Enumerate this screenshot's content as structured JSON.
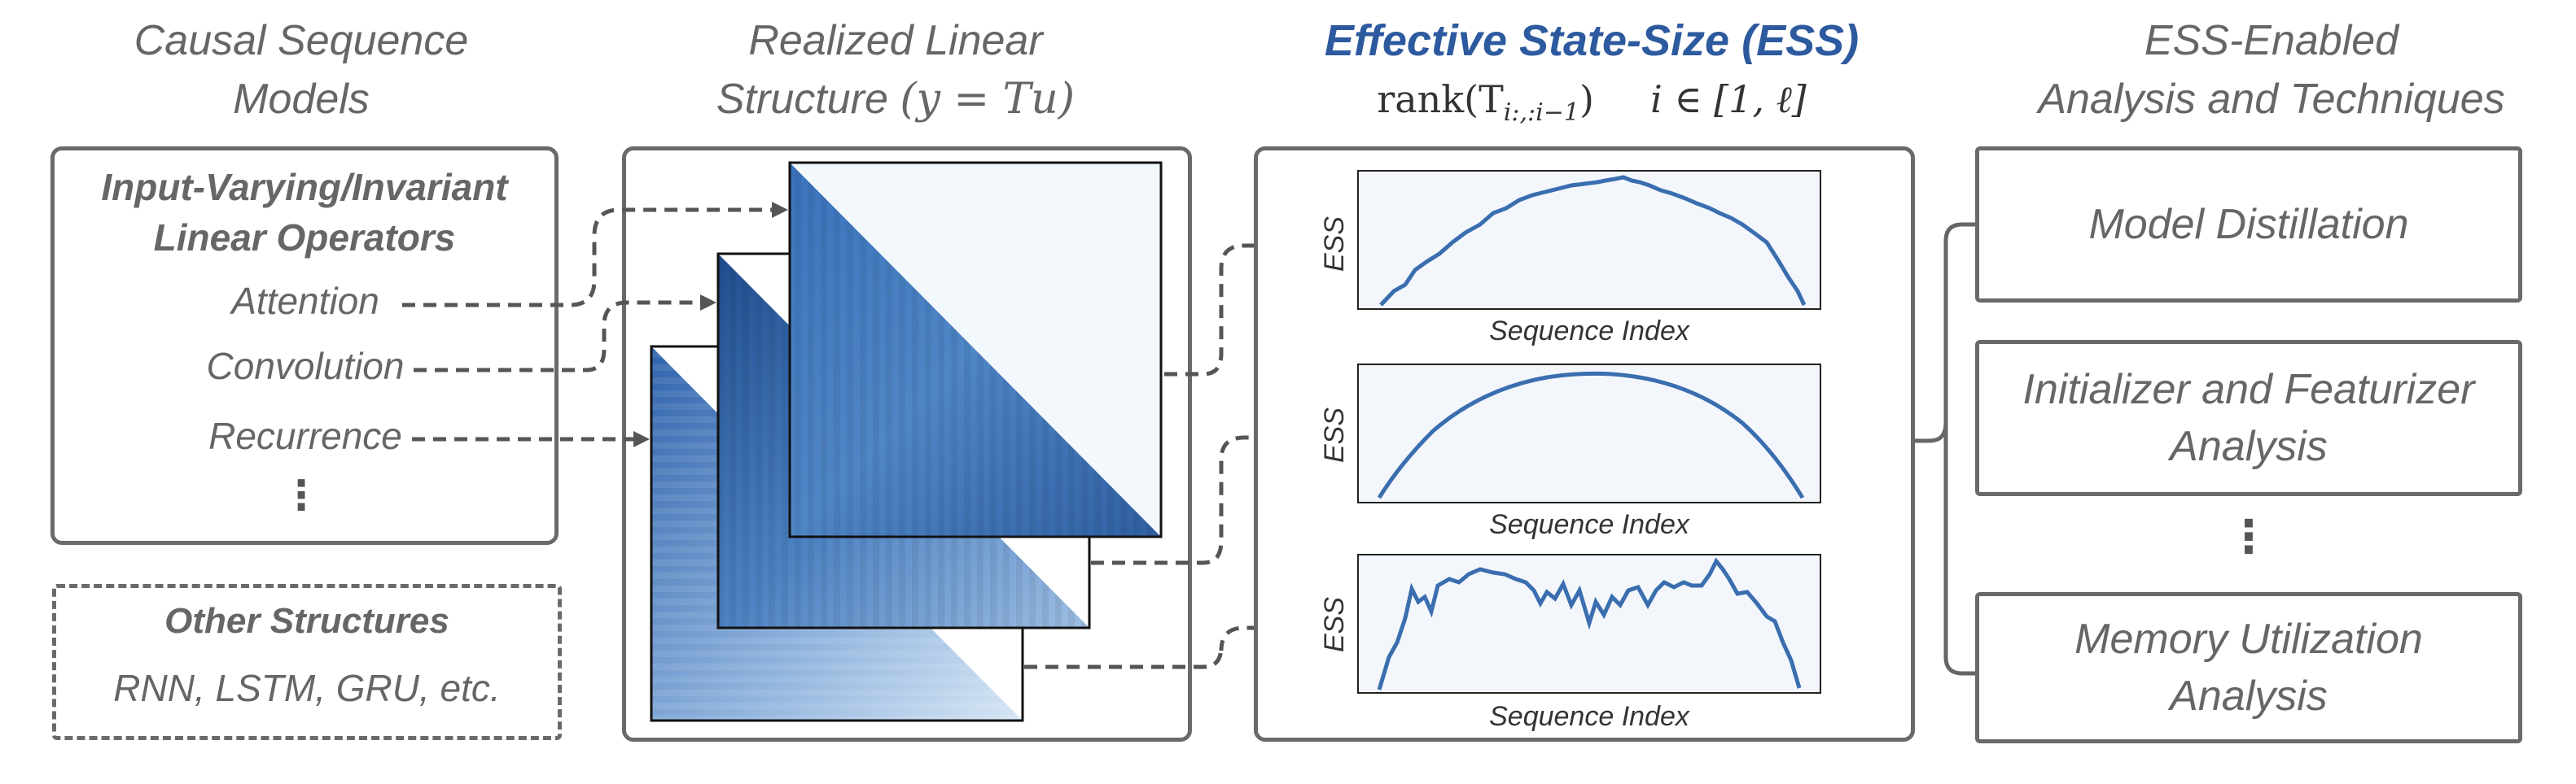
{
  "columns": {
    "causal": {
      "line1": "Causal Sequence",
      "line2": "Models"
    },
    "realized": {
      "line1": "Realized Linear",
      "line2_text": "Structure",
      "formula": "(y = Tu)"
    },
    "ess": {
      "title": "Effective State-Size (ESS)",
      "formula_rank": "rank(T",
      "formula_sub": "i:,:i−1",
      "formula_close": ")",
      "formula_range": "i ∈ [1, ℓ]"
    },
    "enabled": {
      "line1": "ESS-Enabled",
      "line2": "Analysis and Techniques"
    }
  },
  "operators": {
    "heading1": "Input-Varying/Invariant",
    "heading2": "Linear Operators",
    "items": [
      "Attention",
      "Convolution",
      "Recurrence"
    ],
    "more": "⋮"
  },
  "other": {
    "heading": "Other Structures",
    "items": "RNN, LSTM, GRU, etc."
  },
  "plots": [
    {
      "ylabel": "ESS",
      "xlabel": "Sequence Index"
    },
    {
      "ylabel": "ESS",
      "xlabel": "Sequence Index"
    },
    {
      "ylabel": "ESS",
      "xlabel": "Sequence Index"
    }
  ],
  "techniques": {
    "model_distillation": "Model Distillation",
    "initializer_line1": "Initializer and Featurizer",
    "initializer_line2": "Analysis",
    "more": "⋮",
    "memory_line1": "Memory Utilization",
    "memory_line2": "Analysis"
  },
  "colors": {
    "accent_blue": "#2d5a9e",
    "line_blue": "#3a6eaf",
    "border_gray": "#6a6a6a",
    "text_gray": "#666666"
  }
}
